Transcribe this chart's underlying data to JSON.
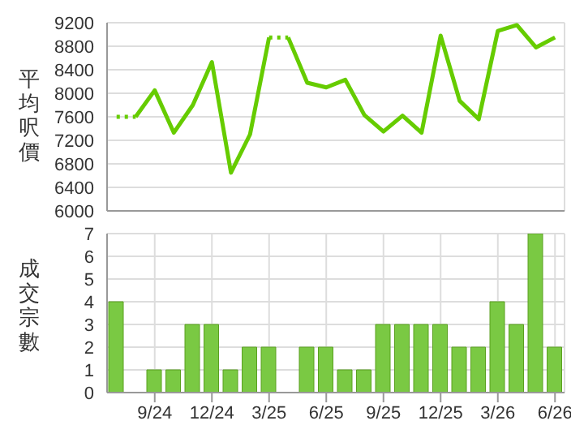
{
  "chart_data": [
    {
      "type": "line",
      "ylabel": "平均呎價",
      "categories": [
        null,
        null,
        null,
        null,
        null,
        null,
        null,
        null,
        null,
        null,
        null,
        null,
        null,
        null,
        null,
        null,
        null,
        null,
        null,
        null,
        null,
        null,
        null,
        null
      ],
      "ylim": [
        6000,
        9200
      ],
      "yticks": [
        6000,
        6400,
        6800,
        7200,
        7600,
        8000,
        8400,
        8800,
        9200
      ],
      "grid": true,
      "tick_labels": "y",
      "marker": "none",
      "series": [
        {
          "type": "line",
          "color": "#66cc00",
          "line_style": "solid",
          "values": [
            null,
            7600,
            8050,
            7330,
            7800,
            8530,
            6650,
            7300,
            8950,
            null,
            null,
            null,
            null,
            null,
            null,
            null,
            null,
            null,
            null,
            null,
            null,
            null,
            null,
            null
          ]
        },
        {
          "type": "line",
          "color": "#66cc00",
          "line_style": "solid",
          "values": [
            null,
            null,
            null,
            null,
            null,
            null,
            null,
            null,
            null,
            8950,
            8180,
            8100,
            8230,
            7630,
            7350,
            7620,
            7330,
            8980,
            7870,
            7560,
            9060,
            9160,
            8780,
            8950
          ]
        },
        {
          "type": "line",
          "color": "#66cc00",
          "line_style": "dotted",
          "values": [
            7600,
            7600,
            null,
            null,
            null,
            null,
            null,
            null,
            8950,
            8950,
            null,
            null,
            null,
            null,
            null,
            null,
            null,
            null,
            null,
            null,
            null,
            null,
            null,
            null
          ]
        }
      ]
    },
    {
      "type": "bar",
      "ylabel": "成交宗數",
      "categories": [
        null,
        null,
        "9/24",
        null,
        null,
        "12/24",
        null,
        null,
        "3/25",
        null,
        null,
        "6/25",
        null,
        null,
        "9/25",
        null,
        null,
        "12/25",
        null,
        null,
        "3/26",
        null,
        null,
        "6/26"
      ],
      "ylim": [
        0,
        7
      ],
      "yticks": [
        0,
        1,
        2,
        3,
        4,
        5,
        6,
        7
      ],
      "grid": true,
      "color": "#7ac943",
      "values": [
        4,
        0,
        1,
        1,
        3,
        3,
        1,
        2,
        2,
        0,
        2,
        2,
        1,
        1,
        3,
        3,
        3,
        3,
        2,
        2,
        4,
        3,
        7,
        2
      ]
    }
  ]
}
